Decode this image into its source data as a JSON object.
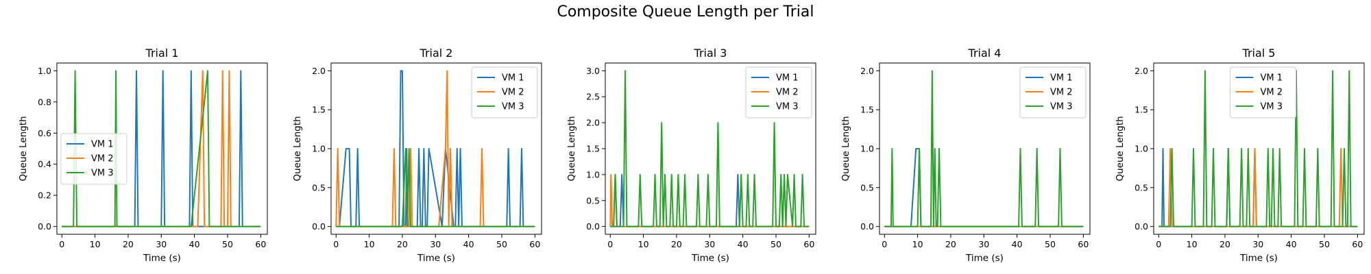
{
  "figure": {
    "title": "Composite Queue Length per Trial"
  },
  "colors": {
    "VM 1": "#1f77b4",
    "VM 2": "#ff7f0e",
    "VM 3": "#2ca02c"
  },
  "chart_data": [
    {
      "type": "line",
      "title": "Trial 1",
      "xlabel": "Time (s)",
      "ylabel": "Queue Length",
      "xlim": [
        -1.5,
        62
      ],
      "ylim": [
        -0.05,
        1.05
      ],
      "xticks": [
        0,
        10,
        20,
        30,
        40,
        50,
        60
      ],
      "yticks": [
        0.0,
        0.2,
        0.4,
        0.6,
        0.8,
        1.0
      ],
      "ytick_labels": [
        "0.0",
        "0.2",
        "0.4",
        "0.6",
        "0.8",
        "1.0"
      ],
      "legend": "center-left",
      "grid": false,
      "series": [
        {
          "name": "VM 1",
          "x": [
            0,
            22,
            22.5,
            23,
            30,
            30.5,
            31,
            38.5,
            39,
            39.5,
            53.5,
            54,
            54.5,
            60
          ],
          "y": [
            0,
            0,
            1,
            0,
            0,
            1,
            0,
            0,
            1,
            0,
            0,
            1,
            0,
            0
          ]
        },
        {
          "name": "VM 2",
          "x": [
            0,
            41,
            42.5,
            43,
            48,
            48.5,
            49,
            50,
            50.5,
            51,
            60
          ],
          "y": [
            0,
            0,
            1,
            0,
            0,
            1,
            0,
            0,
            1,
            0,
            0
          ]
        },
        {
          "name": "VM 3",
          "x": [
            0,
            3.5,
            4,
            4.5,
            16,
            16.3,
            16.6,
            39,
            44,
            44.5,
            60
          ],
          "y": [
            0,
            0,
            1,
            0,
            0,
            1,
            0,
            0,
            1,
            0,
            0
          ]
        }
      ]
    },
    {
      "type": "line",
      "title": "Trial 2",
      "xlabel": "Time (s)",
      "ylabel": "Queue Length",
      "xlim": [
        -1.5,
        62
      ],
      "ylim": [
        -0.1,
        2.1
      ],
      "xticks": [
        0,
        10,
        20,
        30,
        40,
        50,
        60
      ],
      "yticks": [
        0.0,
        0.5,
        1.0,
        1.5,
        2.0
      ],
      "ytick_labels": [
        "0.0",
        "0.5",
        "1.0",
        "1.5",
        "2.0"
      ],
      "legend": "top-right",
      "grid": false,
      "series": [
        {
          "name": "VM 1",
          "x": [
            0,
            1,
            3,
            4,
            4.5,
            6,
            6.5,
            7,
            19,
            19.5,
            20,
            20.5,
            21,
            21.3,
            21.6,
            24.5,
            25,
            25.5,
            26,
            26.5,
            27,
            27.5,
            28,
            32,
            33,
            35.5,
            36,
            36.5,
            37,
            37.5,
            38,
            51.5,
            52,
            52.5,
            55.5,
            56,
            56.5,
            60
          ],
          "y": [
            0,
            0,
            1,
            1,
            0,
            0,
            1,
            0,
            0,
            2,
            2,
            0,
            0,
            1,
            0,
            0,
            1,
            0,
            0,
            1,
            0,
            0,
            1,
            0,
            1,
            0,
            0,
            1,
            0,
            1,
            0,
            0,
            1,
            0,
            0,
            1,
            0,
            0
          ]
        },
        {
          "name": "VM 2",
          "x": [
            0,
            0.5,
            1,
            17,
            17.5,
            18,
            22,
            22.5,
            23,
            31,
            33,
            33.5,
            34,
            34.5,
            35,
            43.5,
            44,
            44.5,
            60
          ],
          "y": [
            0,
            1,
            0,
            0,
            1,
            0,
            0,
            1,
            0,
            0,
            1,
            2,
            0,
            1,
            0,
            0,
            1,
            0,
            0
          ]
        },
        {
          "name": "VM 3",
          "x": [
            0,
            20,
            21,
            21.5,
            22,
            22.5,
            60
          ],
          "y": [
            0,
            0,
            1,
            0,
            1,
            0,
            0
          ]
        }
      ]
    },
    {
      "type": "line",
      "title": "Trial 3",
      "xlabel": "Time (s)",
      "ylabel": "Queue Length",
      "xlim": [
        -1.5,
        62
      ],
      "ylim": [
        -0.15,
        3.15
      ],
      "xticks": [
        0,
        10,
        20,
        30,
        40,
        50,
        60
      ],
      "yticks": [
        0.0,
        0.5,
        1.0,
        1.5,
        2.0,
        2.5,
        3.0
      ],
      "ytick_labels": [
        "0.0",
        "0.5",
        "1.0",
        "1.5",
        "2.0",
        "2.5",
        "3.0"
      ],
      "legend": "top-right",
      "grid": false,
      "series": [
        {
          "name": "VM 1",
          "x": [
            0,
            3,
            3.5,
            4,
            38,
            38.5,
            39,
            60
          ],
          "y": [
            0,
            0,
            1,
            0,
            0,
            1,
            0,
            0
          ]
        },
        {
          "name": "VM 2",
          "x": [
            0,
            0.2,
            0.6,
            1,
            1.5,
            2,
            2.5,
            60
          ],
          "y": [
            0,
            1,
            0,
            0,
            1,
            0,
            0,
            0
          ]
        },
        {
          "name": "VM 3",
          "x": [
            0,
            1,
            1.5,
            2,
            4,
            4.5,
            5,
            8.5,
            9,
            9.5,
            13,
            13.5,
            14,
            15,
            15.5,
            16,
            16.5,
            17,
            18,
            18.5,
            19,
            20,
            20.5,
            21,
            22,
            22.5,
            23,
            26,
            26.5,
            27,
            29,
            29.5,
            30,
            32,
            32.5,
            33,
            39,
            39.5,
            40,
            41,
            41.5,
            42,
            43,
            43.5,
            44,
            49,
            49.5,
            50,
            51,
            51.5,
            52,
            52.5,
            53,
            53.5,
            55,
            55.5,
            56,
            57.5,
            58,
            58.5,
            60
          ],
          "y": [
            0,
            0,
            1,
            0,
            0,
            3,
            0,
            0,
            1,
            0,
            0,
            1,
            0,
            0,
            2,
            0,
            1,
            0,
            0,
            1,
            0,
            0,
            1,
            0,
            0,
            1,
            0,
            0,
            1,
            0,
            0,
            1,
            0,
            0,
            2,
            0,
            0,
            1,
            0,
            0,
            1,
            0,
            0,
            1,
            0,
            0,
            2,
            0,
            0,
            1,
            0,
            1,
            0,
            1,
            0,
            1,
            0,
            0,
            1,
            0,
            0
          ]
        }
      ]
    },
    {
      "type": "line",
      "title": "Trial 4",
      "xlabel": "Time (s)",
      "ylabel": "Queue Length",
      "xlim": [
        -1.5,
        62
      ],
      "ylim": [
        -0.1,
        2.1
      ],
      "xticks": [
        0,
        10,
        20,
        30,
        40,
        50,
        60
      ],
      "yticks": [
        0.0,
        0.5,
        1.0,
        1.5,
        2.0
      ],
      "ytick_labels": [
        "0.0",
        "0.5",
        "1.0",
        "1.5",
        "2.0"
      ],
      "legend": "top-right",
      "grid": false,
      "series": [
        {
          "name": "VM 1",
          "x": [
            0,
            8,
            9.5,
            10.5,
            11,
            60
          ],
          "y": [
            0,
            0,
            1,
            1,
            0,
            0
          ]
        },
        {
          "name": "VM 2",
          "x": [
            0,
            60
          ],
          "y": [
            0,
            0
          ]
        },
        {
          "name": "VM 3",
          "x": [
            0,
            2,
            2.3,
            2.6,
            10,
            10.5,
            11,
            14,
            14.4,
            14.8,
            15.2,
            15.6,
            16,
            16.5,
            17,
            40.5,
            41,
            41.5,
            45.5,
            46,
            46.5,
            52.5,
            53,
            53.5,
            60
          ],
          "y": [
            0,
            0,
            1,
            0,
            0,
            1,
            0,
            0,
            2,
            0,
            1,
            0,
            0,
            1,
            0,
            0,
            1,
            0,
            0,
            1,
            0,
            0,
            1,
            0,
            0
          ]
        }
      ]
    },
    {
      "type": "line",
      "title": "Trial 5",
      "xlabel": "Time (s)",
      "ylabel": "Queue Length",
      "xlim": [
        -1.5,
        62
      ],
      "ylim": [
        -0.1,
        2.1
      ],
      "xticks": [
        0,
        10,
        20,
        30,
        40,
        50,
        60
      ],
      "yticks": [
        0.0,
        0.5,
        1.0,
        1.5,
        2.0
      ],
      "ytick_labels": [
        "0.0",
        "0.5",
        "1.0",
        "1.5",
        "2.0"
      ],
      "legend": "top-center",
      "grid": false,
      "series": [
        {
          "name": "VM 1",
          "x": [
            0,
            1,
            1.3,
            1.6,
            20.5,
            21,
            21.5,
            28.5,
            29,
            29.5,
            60
          ],
          "y": [
            0,
            0,
            1,
            0,
            0,
            1,
            0,
            0,
            1,
            0,
            0
          ]
        },
        {
          "name": "VM 2",
          "x": [
            0,
            3,
            3.5,
            4,
            28.5,
            29,
            29.5,
            54.5,
            55,
            55.5,
            60
          ],
          "y": [
            0,
            0,
            1,
            0,
            0,
            1,
            0,
            0,
            1,
            0,
            0
          ]
        },
        {
          "name": "VM 3",
          "x": [
            0,
            3.5,
            4,
            4.5,
            10,
            10.5,
            11,
            13.5,
            14,
            14.5,
            16,
            16.5,
            17,
            20.5,
            21,
            21.5,
            24.5,
            25,
            25.5,
            26.5,
            27,
            27.5,
            32.5,
            33,
            33.5,
            34,
            34.5,
            35,
            36,
            36.5,
            37,
            41,
            41.5,
            42,
            43.5,
            44,
            44.5,
            47.5,
            48,
            48.5,
            52,
            52.5,
            53,
            55.5,
            56,
            56.5,
            57,
            57.5,
            58,
            60
          ],
          "y": [
            0,
            0,
            1,
            0,
            0,
            1,
            0,
            0,
            2,
            0,
            0,
            1,
            0,
            0,
            1,
            0,
            0,
            1,
            0,
            0,
            1,
            0,
            0,
            1,
            0,
            0,
            1,
            0,
            0,
            1,
            0,
            0,
            2,
            0,
            0,
            1,
            0,
            0,
            1,
            0,
            0,
            2,
            0,
            0,
            1,
            0,
            0,
            2,
            0,
            0
          ]
        }
      ]
    }
  ]
}
